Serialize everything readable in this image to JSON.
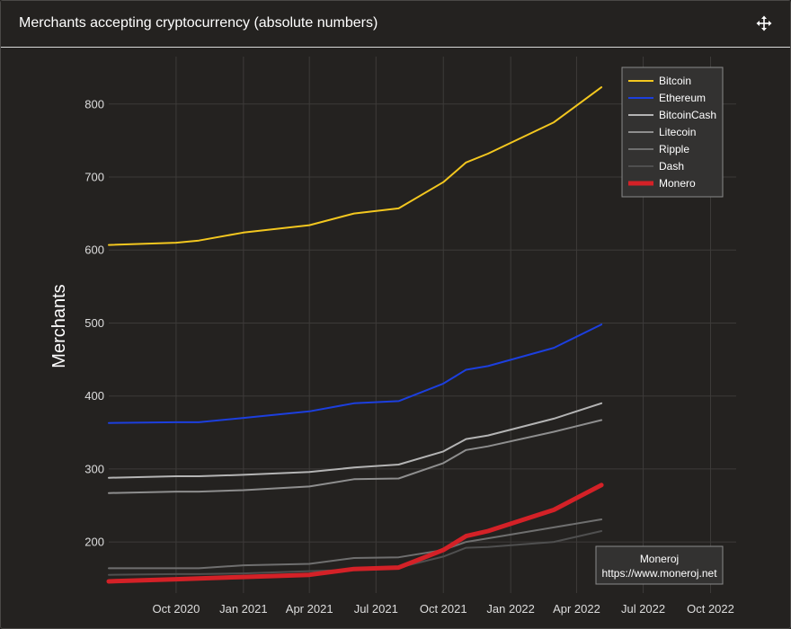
{
  "card": {
    "title": "Merchants accepting cryptocurrency (absolute numbers)",
    "move_icon": "move-arrows-icon"
  },
  "chart_data": {
    "type": "line",
    "ylabel": "Merchants",
    "xlabel": "",
    "ylim": [
      130,
      865
    ],
    "xlim": [
      "2020-07-01",
      "2022-11-05"
    ],
    "yticks": [
      200,
      300,
      400,
      500,
      600,
      700,
      800
    ],
    "xticks": [
      {
        "date": "2020-10-01",
        "label": "Oct 2020"
      },
      {
        "date": "2021-01-01",
        "label": "Jan 2021"
      },
      {
        "date": "2021-04-01",
        "label": "Apr 2021"
      },
      {
        "date": "2021-07-01",
        "label": "Jul 2021"
      },
      {
        "date": "2021-10-01",
        "label": "Oct 2021"
      },
      {
        "date": "2022-01-01",
        "label": "Jan 2022"
      },
      {
        "date": "2022-04-01",
        "label": "Apr 2022"
      },
      {
        "date": "2022-07-01",
        "label": "Jul 2022"
      },
      {
        "date": "2022-10-01",
        "label": "Oct 2022"
      }
    ],
    "grid": true,
    "legend_position": "top-right",
    "dates": [
      "2020-07-01",
      "2020-10-01",
      "2020-11-01",
      "2021-01-01",
      "2021-04-01",
      "2021-06-01",
      "2021-08-01",
      "2021-10-01",
      "2021-11-01",
      "2021-12-01",
      "2022-03-01",
      "2022-05-05"
    ],
    "series": [
      {
        "name": "Bitcoin",
        "color": "#f3c71f",
        "width": 2,
        "values": [
          607,
          610,
          613,
          624,
          634,
          650,
          657,
          693,
          720,
          732,
          775,
          823
        ]
      },
      {
        "name": "Ethereum",
        "color": "#1c3fde",
        "width": 2,
        "values": [
          363,
          364,
          364,
          370,
          379,
          390,
          393,
          417,
          436,
          441,
          466,
          498
        ]
      },
      {
        "name": "BitcoinCash",
        "color": "#b4b4b4",
        "width": 2,
        "values": [
          288,
          290,
          290,
          292,
          296,
          302,
          306,
          324,
          341,
          346,
          369,
          390
        ]
      },
      {
        "name": "Litecoin",
        "color": "#8e8e8e",
        "width": 2,
        "values": [
          267,
          269,
          269,
          271,
          276,
          286,
          287,
          308,
          326,
          331,
          351,
          367
        ]
      },
      {
        "name": "Ripple",
        "color": "#6f6f6f",
        "width": 2,
        "values": [
          164,
          164,
          164,
          168,
          170,
          178,
          179,
          189,
          200,
          205,
          220,
          231
        ]
      },
      {
        "name": "Dash",
        "color": "#4f4f4f",
        "width": 2,
        "values": [
          155,
          156,
          156,
          157,
          160,
          162,
          165,
          180,
          192,
          193,
          200,
          215
        ]
      },
      {
        "name": "Monero",
        "color": "#d42127",
        "width": 5,
        "values": [
          146,
          149,
          150,
          152,
          155,
          163,
          165,
          189,
          208,
          215,
          244,
          278
        ]
      }
    ],
    "credit": {
      "line1": "Moneroj",
      "line2": "https://www.moneroj.net"
    }
  }
}
